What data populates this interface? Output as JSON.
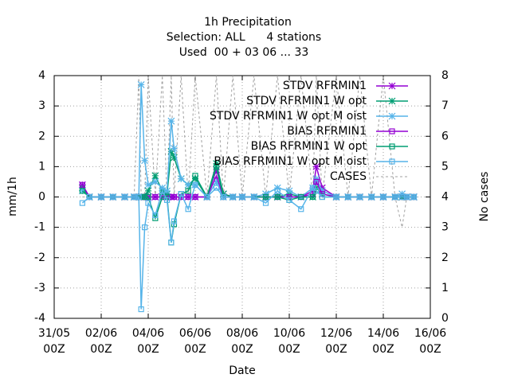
{
  "chart_data": {
    "type": "line",
    "title": [
      "1h Precipitation",
      "Selection: ALL      4 stations",
      "Used  00 + 03 06 ... 33"
    ],
    "x_label": "Date",
    "y_label": "mm/1h",
    "y2_label": "No cases",
    "xlim": [
      0,
      16
    ],
    "xticks": [
      {
        "value": 0,
        "label": "31/05 00Z"
      },
      {
        "value": 2,
        "label": "02/06 00Z"
      },
      {
        "value": 4,
        "label": "04/06 00Z"
      },
      {
        "value": 6,
        "label": "06/06 00Z"
      },
      {
        "value": 8,
        "label": "08/06 00Z"
      },
      {
        "value": 10,
        "label": "10/06 00Z"
      },
      {
        "value": 12,
        "label": "12/06 00Z"
      },
      {
        "value": 14,
        "label": "14/06 00Z"
      },
      {
        "value": 16,
        "label": "16/06 00Z"
      }
    ],
    "ylim": [
      -4,
      4
    ],
    "yticks": [
      -4,
      -3,
      -2,
      -1,
      0,
      1,
      2,
      3,
      4
    ],
    "y2lim": [
      0,
      8
    ],
    "y2ticks": [
      0,
      1,
      2,
      3,
      4,
      5,
      6,
      7,
      8
    ],
    "grid": true,
    "legend": "top-right",
    "x": [
      1.2,
      1.5,
      2,
      2.5,
      3,
      3.4,
      3.6,
      3.7,
      3.85,
      4,
      4.3,
      4.6,
      4.8,
      4.98,
      5.1,
      5.4,
      5.7,
      6,
      6.5,
      6.9,
      7.2,
      7.6,
      8,
      8.5,
      9,
      9.5,
      10,
      10.5,
      11,
      11.15,
      11.4,
      12,
      12.5,
      13,
      13.5,
      14,
      14.5,
      14.8,
      15,
      15.3
    ],
    "series": [
      {
        "name": "STDV RFRMIN1",
        "color": "#9400d3",
        "marker": "star",
        "values": [
          0.4,
          0,
          0,
          0,
          0,
          0,
          0,
          0,
          0,
          0,
          0,
          0,
          0,
          0,
          0,
          0,
          0,
          0,
          0,
          0.9,
          0.1,
          0,
          0,
          0,
          0,
          0,
          0,
          0,
          0.2,
          1.0,
          0.3,
          0,
          0,
          0,
          0,
          0,
          0,
          0,
          0,
          0
        ]
      },
      {
        "name": "STDV RFRMIN1 W opt",
        "color": "#009e73",
        "marker": "star",
        "values": [
          0.3,
          0,
          0,
          0,
          0,
          0,
          0,
          0,
          0,
          0.2,
          0.7,
          0.2,
          0.1,
          1.5,
          1.3,
          0.6,
          0.4,
          0.6,
          0,
          1.1,
          0.1,
          0,
          0,
          0,
          0,
          0,
          0.1,
          0,
          0,
          0.3,
          0.1,
          0,
          0,
          0,
          0,
          0,
          0,
          0,
          0,
          0
        ]
      },
      {
        "name": "STDV RFRMIN1 W opt M oist",
        "color": "#56b4e9",
        "marker": "star",
        "values": [
          0.2,
          0,
          0,
          0,
          0,
          0,
          0,
          3.7,
          1.2,
          0.4,
          0.5,
          0.3,
          0.2,
          2.5,
          1.6,
          0.6,
          0.4,
          0.4,
          0,
          0.5,
          0,
          0,
          0,
          0,
          0.1,
          0.3,
          0.2,
          0,
          0.3,
          0.6,
          0.2,
          0,
          0,
          0,
          0,
          0,
          0,
          0.1,
          0,
          0
        ]
      },
      {
        "name": "BIAS RFRMIN1",
        "color": "#9400d3",
        "marker": "square",
        "values": [
          0.4,
          0,
          0,
          0,
          0,
          0,
          0,
          0,
          0,
          0,
          0,
          0,
          0,
          0,
          0,
          0,
          0,
          0,
          0,
          0.7,
          0,
          0,
          0,
          0,
          0,
          0,
          0,
          0,
          0.1,
          0.5,
          0.1,
          0,
          0,
          0,
          0,
          0,
          0,
          0,
          0,
          0
        ]
      },
      {
        "name": "BIAS RFRMIN1 W opt",
        "color": "#009e73",
        "marker": "square",
        "values": [
          0.2,
          0,
          0,
          0,
          0,
          0,
          0,
          0,
          0,
          0,
          -0.7,
          0,
          0,
          -1.5,
          -0.9,
          0.1,
          0.2,
          0.7,
          0,
          1.0,
          0,
          0,
          0,
          0,
          0,
          0,
          -0.1,
          0,
          0,
          0.2,
          0,
          0,
          0,
          0,
          0,
          0,
          0,
          0,
          0,
          0
        ]
      },
      {
        "name": "BIAS RFRMIN1 W opt M oist",
        "color": "#56b4e9",
        "marker": "square",
        "values": [
          -0.2,
          0,
          0,
          0,
          0,
          0,
          0,
          -3.7,
          -1.0,
          -0.2,
          -0.6,
          0.2,
          -0.1,
          -1.5,
          -0.8,
          0.1,
          -0.4,
          0.4,
          0,
          0.3,
          0,
          0,
          0,
          0,
          -0.2,
          0.2,
          -0.1,
          -0.4,
          0.3,
          0.2,
          0,
          0,
          0,
          0,
          0,
          0,
          0,
          0,
          0,
          0
        ]
      },
      {
        "name": "CASES",
        "color": "#a0a0a0",
        "marker": "none",
        "dash": true,
        "axis": "y2",
        "values": [
          4,
          4,
          4,
          4,
          4,
          4,
          8,
          4,
          4,
          8,
          4,
          8,
          4,
          8,
          4,
          8,
          4,
          8,
          4,
          8,
          4,
          8,
          4,
          8,
          4,
          8,
          4,
          8,
          4,
          8,
          4,
          8,
          4,
          8,
          4,
          8,
          4,
          3,
          4,
          4
        ]
      }
    ]
  }
}
